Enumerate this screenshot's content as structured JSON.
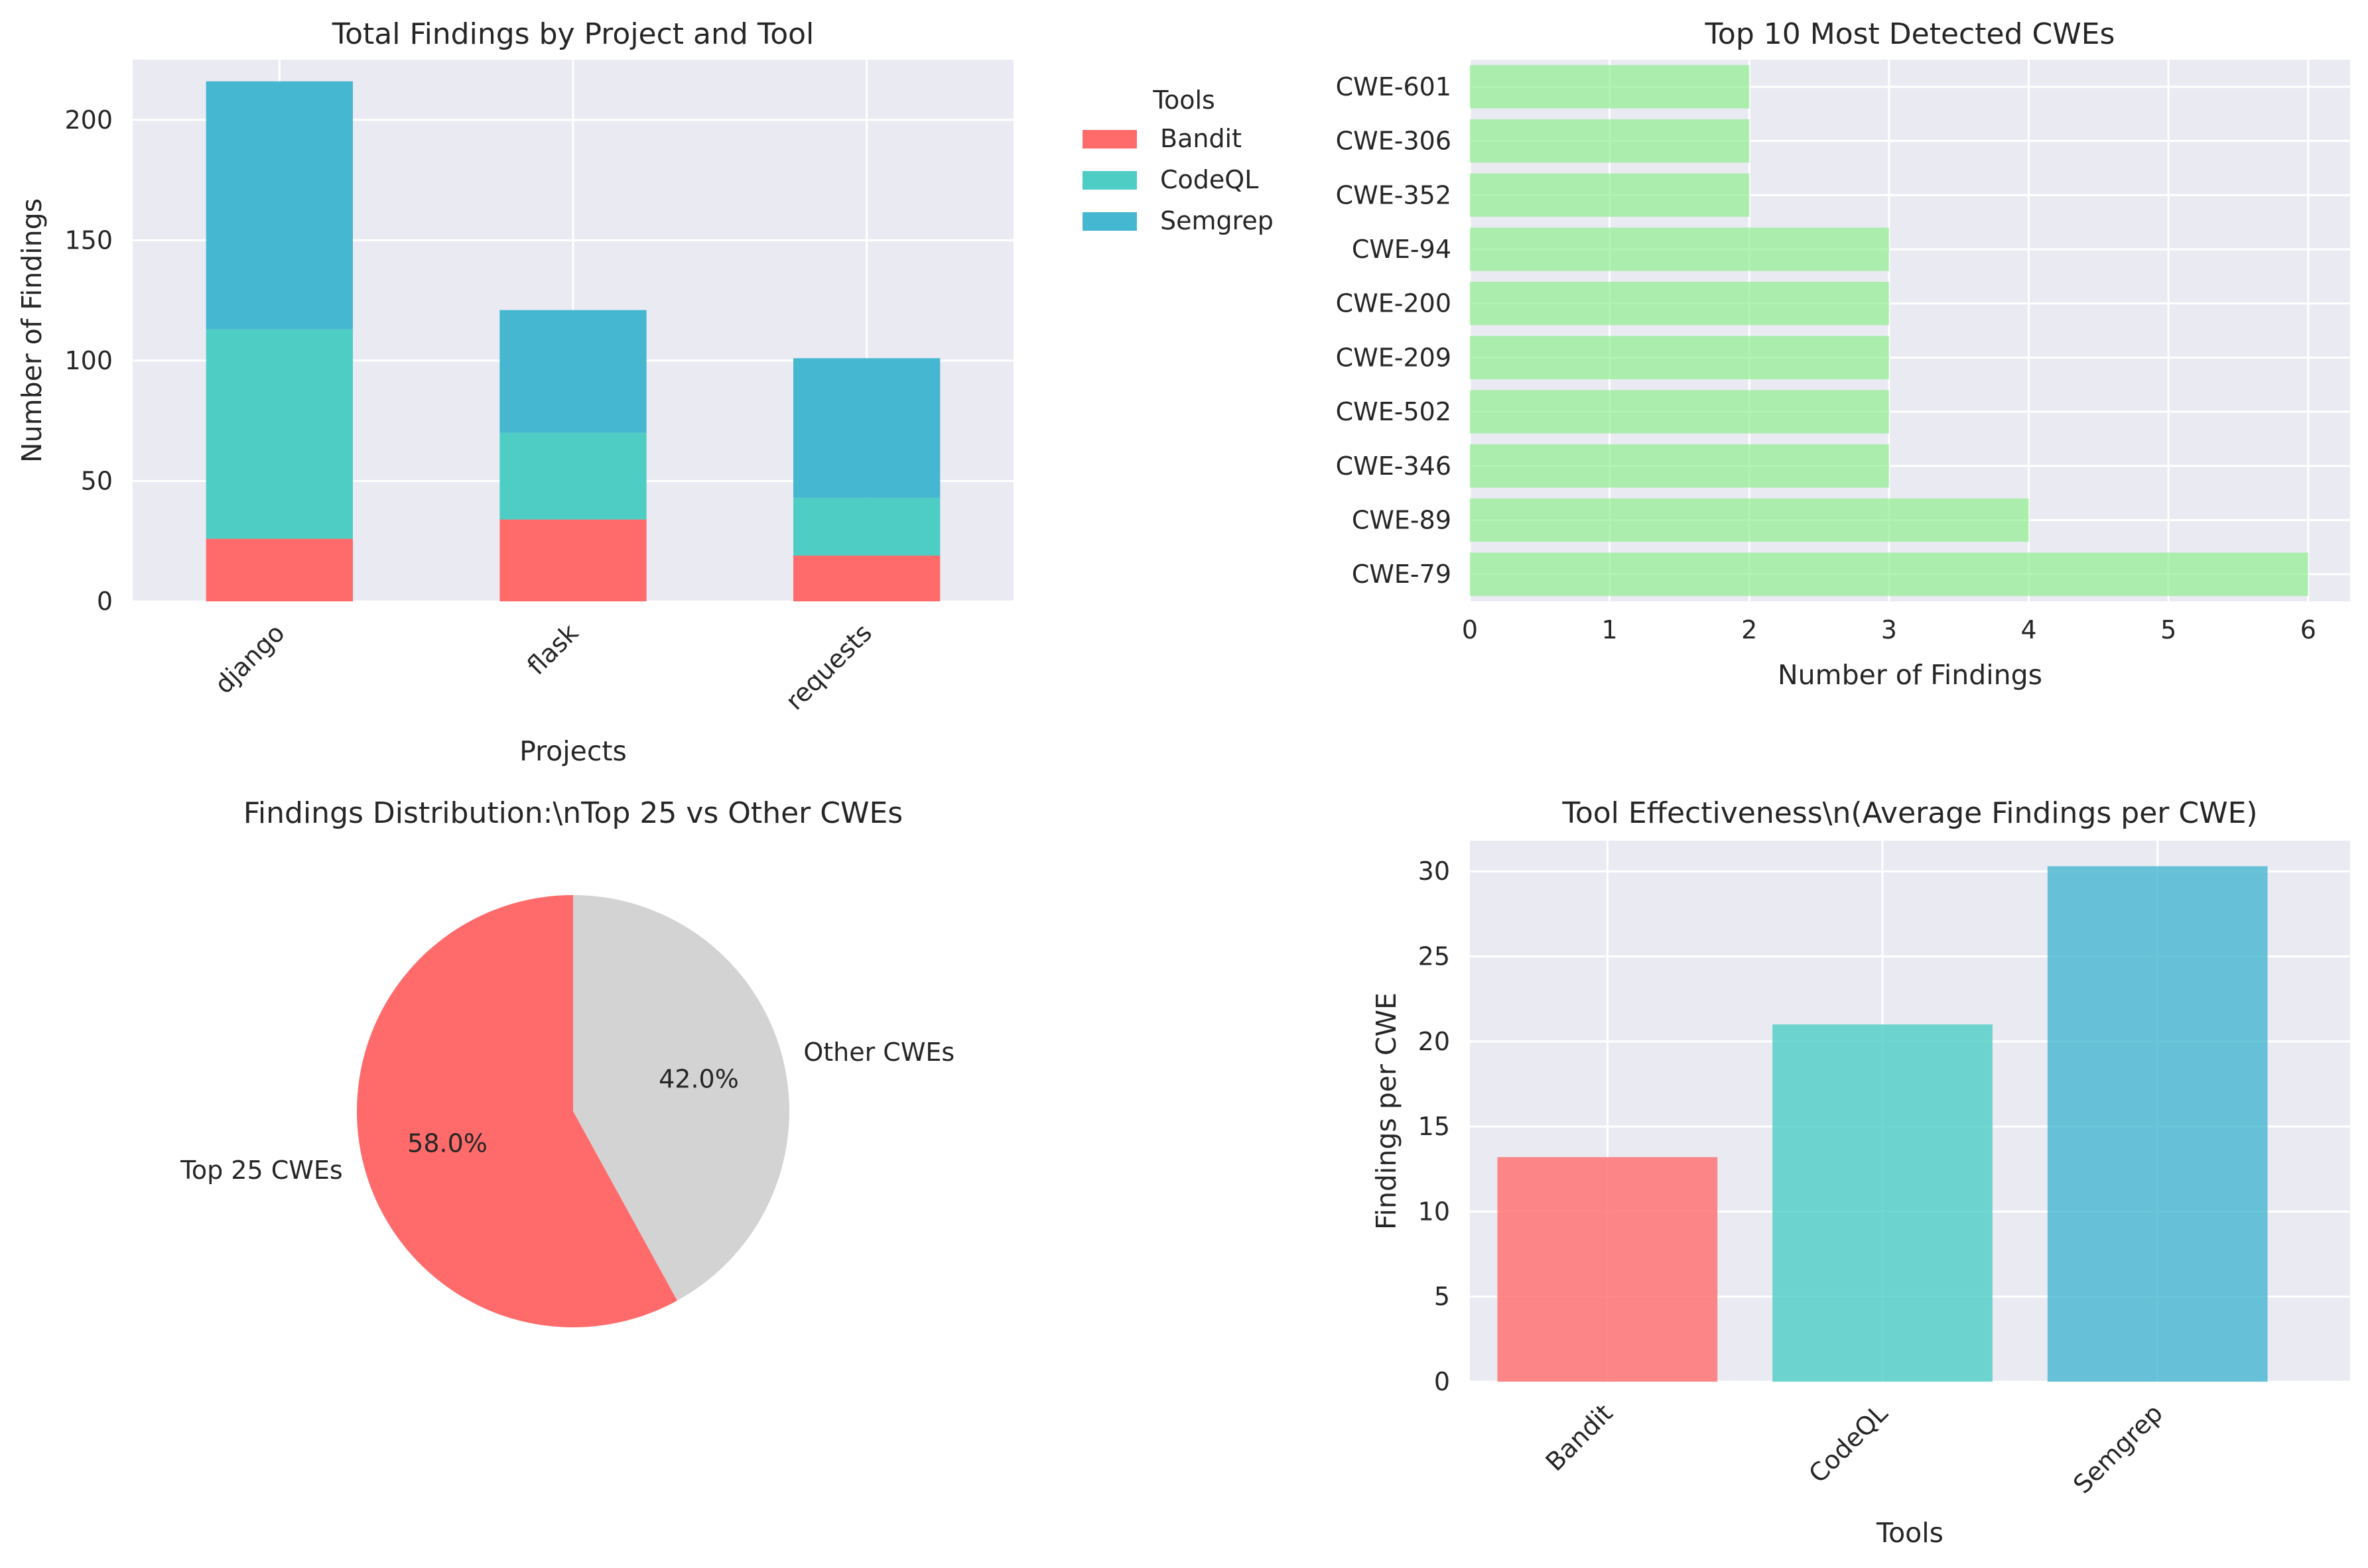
{
  "chart_data": [
    {
      "type": "bar",
      "stacked": true,
      "title": "Total Findings by Project and Tool",
      "xlabel": "Projects",
      "ylabel": "Number of Findings",
      "categories": [
        "django",
        "flask",
        "requests"
      ],
      "series": [
        {
          "name": "Bandit",
          "color": "#ff6b6b",
          "values": [
            26,
            34,
            19
          ]
        },
        {
          "name": "CodeQL",
          "color": "#4ecdc4",
          "values": [
            87,
            36,
            24
          ]
        },
        {
          "name": "Semgrep",
          "color": "#45b7d1",
          "values": [
            103,
            51,
            58
          ]
        }
      ],
      "ylim": [
        0,
        225
      ],
      "yticks": [
        0,
        50,
        100,
        150,
        200
      ],
      "legend_title": "Tools",
      "legend_placement": "outside right",
      "grid": true
    },
    {
      "type": "barh",
      "title": "Top 10 Most Detected CWEs",
      "xlabel": "Number of Findings",
      "ylabel": "",
      "categories": [
        "CWE-79",
        "CWE-89",
        "CWE-346",
        "CWE-502",
        "CWE-209",
        "CWE-200",
        "CWE-94",
        "CWE-352",
        "CWE-306",
        "CWE-601"
      ],
      "values": [
        6,
        4,
        3,
        3,
        3,
        3,
        3,
        2,
        2,
        2
      ],
      "color": "#90ee90",
      "xlim": [
        0,
        6.3
      ],
      "xticks": [
        0,
        1,
        2,
        3,
        4,
        5,
        6
      ],
      "grid": true
    },
    {
      "type": "pie",
      "title": "Findings Distribution:\\nTop 25 vs Other CWEs",
      "labels": [
        "Top 25 CWEs",
        "Other CWEs"
      ],
      "values": [
        58.0,
        42.0
      ],
      "pct_labels": [
        "58.0%",
        "42.0%"
      ],
      "colors": [
        "#ff6b6b",
        "#d3d3d3"
      ],
      "startangle": 90
    },
    {
      "type": "bar",
      "title": "Tool Effectiveness\\n(Average Findings per CWE)",
      "xlabel": "Tools",
      "ylabel": "Findings per CWE",
      "categories": [
        "Bandit",
        "CodeQL",
        "Semgrep"
      ],
      "values": [
        13.2,
        21.0,
        30.3
      ],
      "colors": [
        "#ff6b6b",
        "#4ecdc4",
        "#45b7d1"
      ],
      "ylim": [
        0,
        31.8
      ],
      "yticks": [
        0,
        5,
        10,
        15,
        20,
        25,
        30
      ],
      "grid": true
    }
  ]
}
